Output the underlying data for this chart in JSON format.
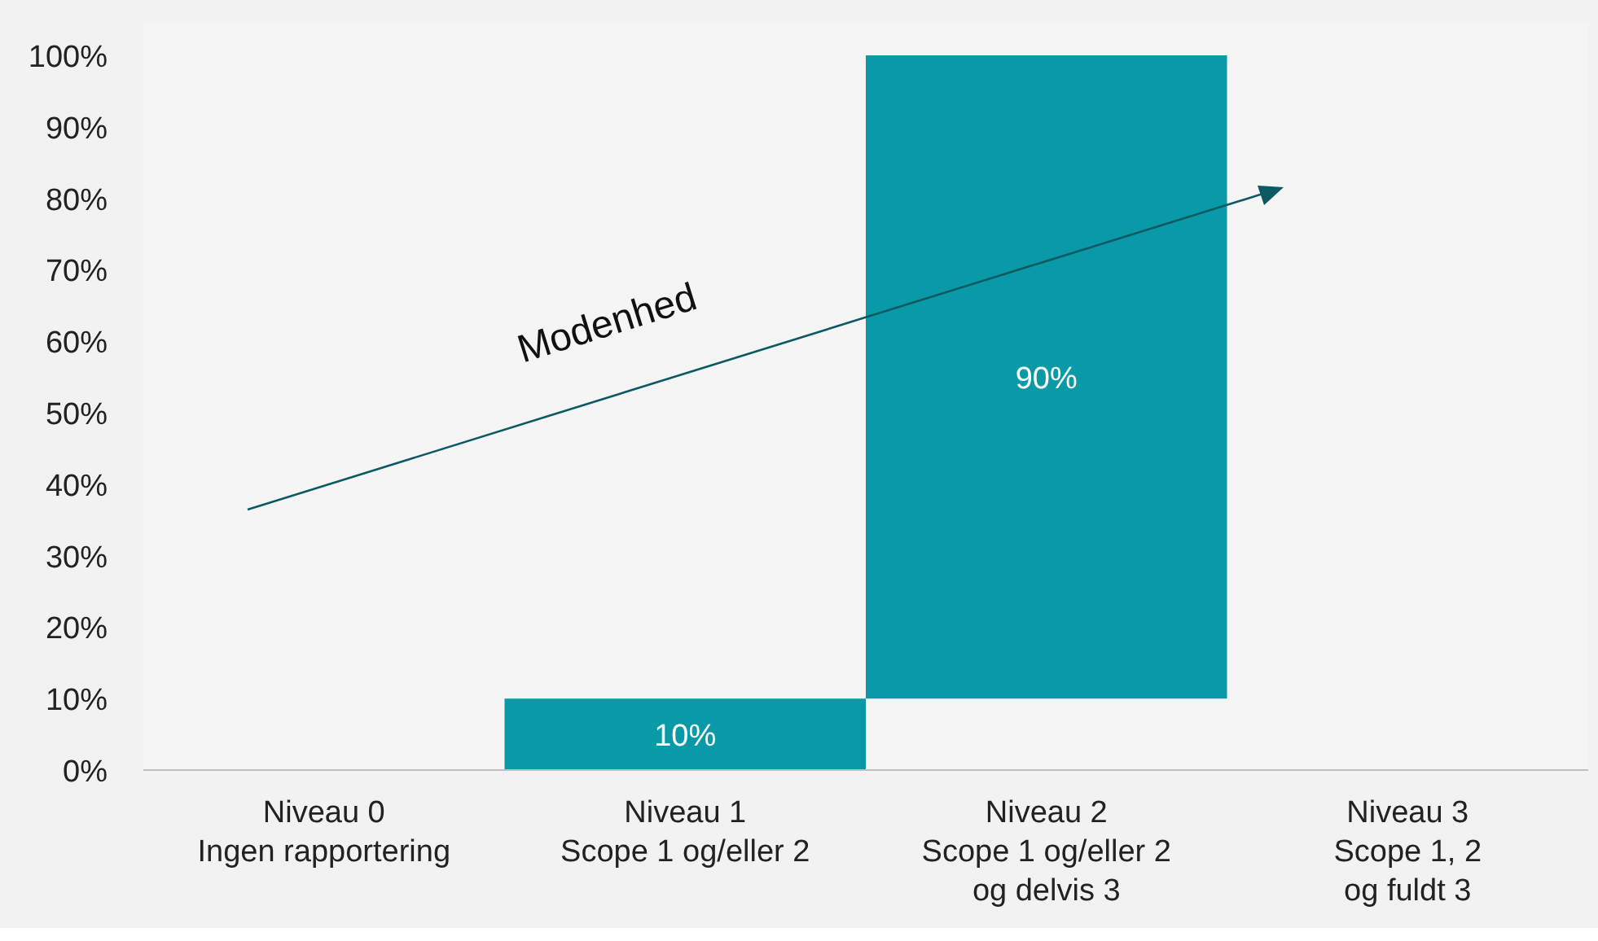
{
  "chart_data": {
    "type": "bar",
    "categories": [
      "Niveau 0\nIngen rapportering",
      "Niveau 1\nScope 1 og/eller 2",
      "Niveau 2\nScope 1 og/eller 2\nog delvis 3",
      "Niveau 3\nScope 1, 2\nog fuldt 3"
    ],
    "values": [
      null,
      10,
      90,
      null
    ],
    "base": [
      null,
      0,
      10,
      null
    ],
    "value_labels": [
      null,
      "10%",
      "90%",
      null
    ],
    "color": "#0a9aa7",
    "ylim": [
      0,
      100
    ],
    "yticks": [
      {
        "value": 0,
        "label": "0%"
      },
      {
        "value": 10,
        "label": "10%"
      },
      {
        "value": 20,
        "label": "20%"
      },
      {
        "value": 30,
        "label": "30%"
      },
      {
        "value": 40,
        "label": "40%"
      },
      {
        "value": 50,
        "label": "50%"
      },
      {
        "value": 60,
        "label": "60%"
      },
      {
        "value": 70,
        "label": "70%"
      },
      {
        "value": 80,
        "label": "80%"
      },
      {
        "value": 90,
        "label": "90%"
      },
      {
        "value": 100,
        "label": "100%"
      }
    ],
    "annotations": [
      "Modenhed"
    ],
    "grid": false
  }
}
